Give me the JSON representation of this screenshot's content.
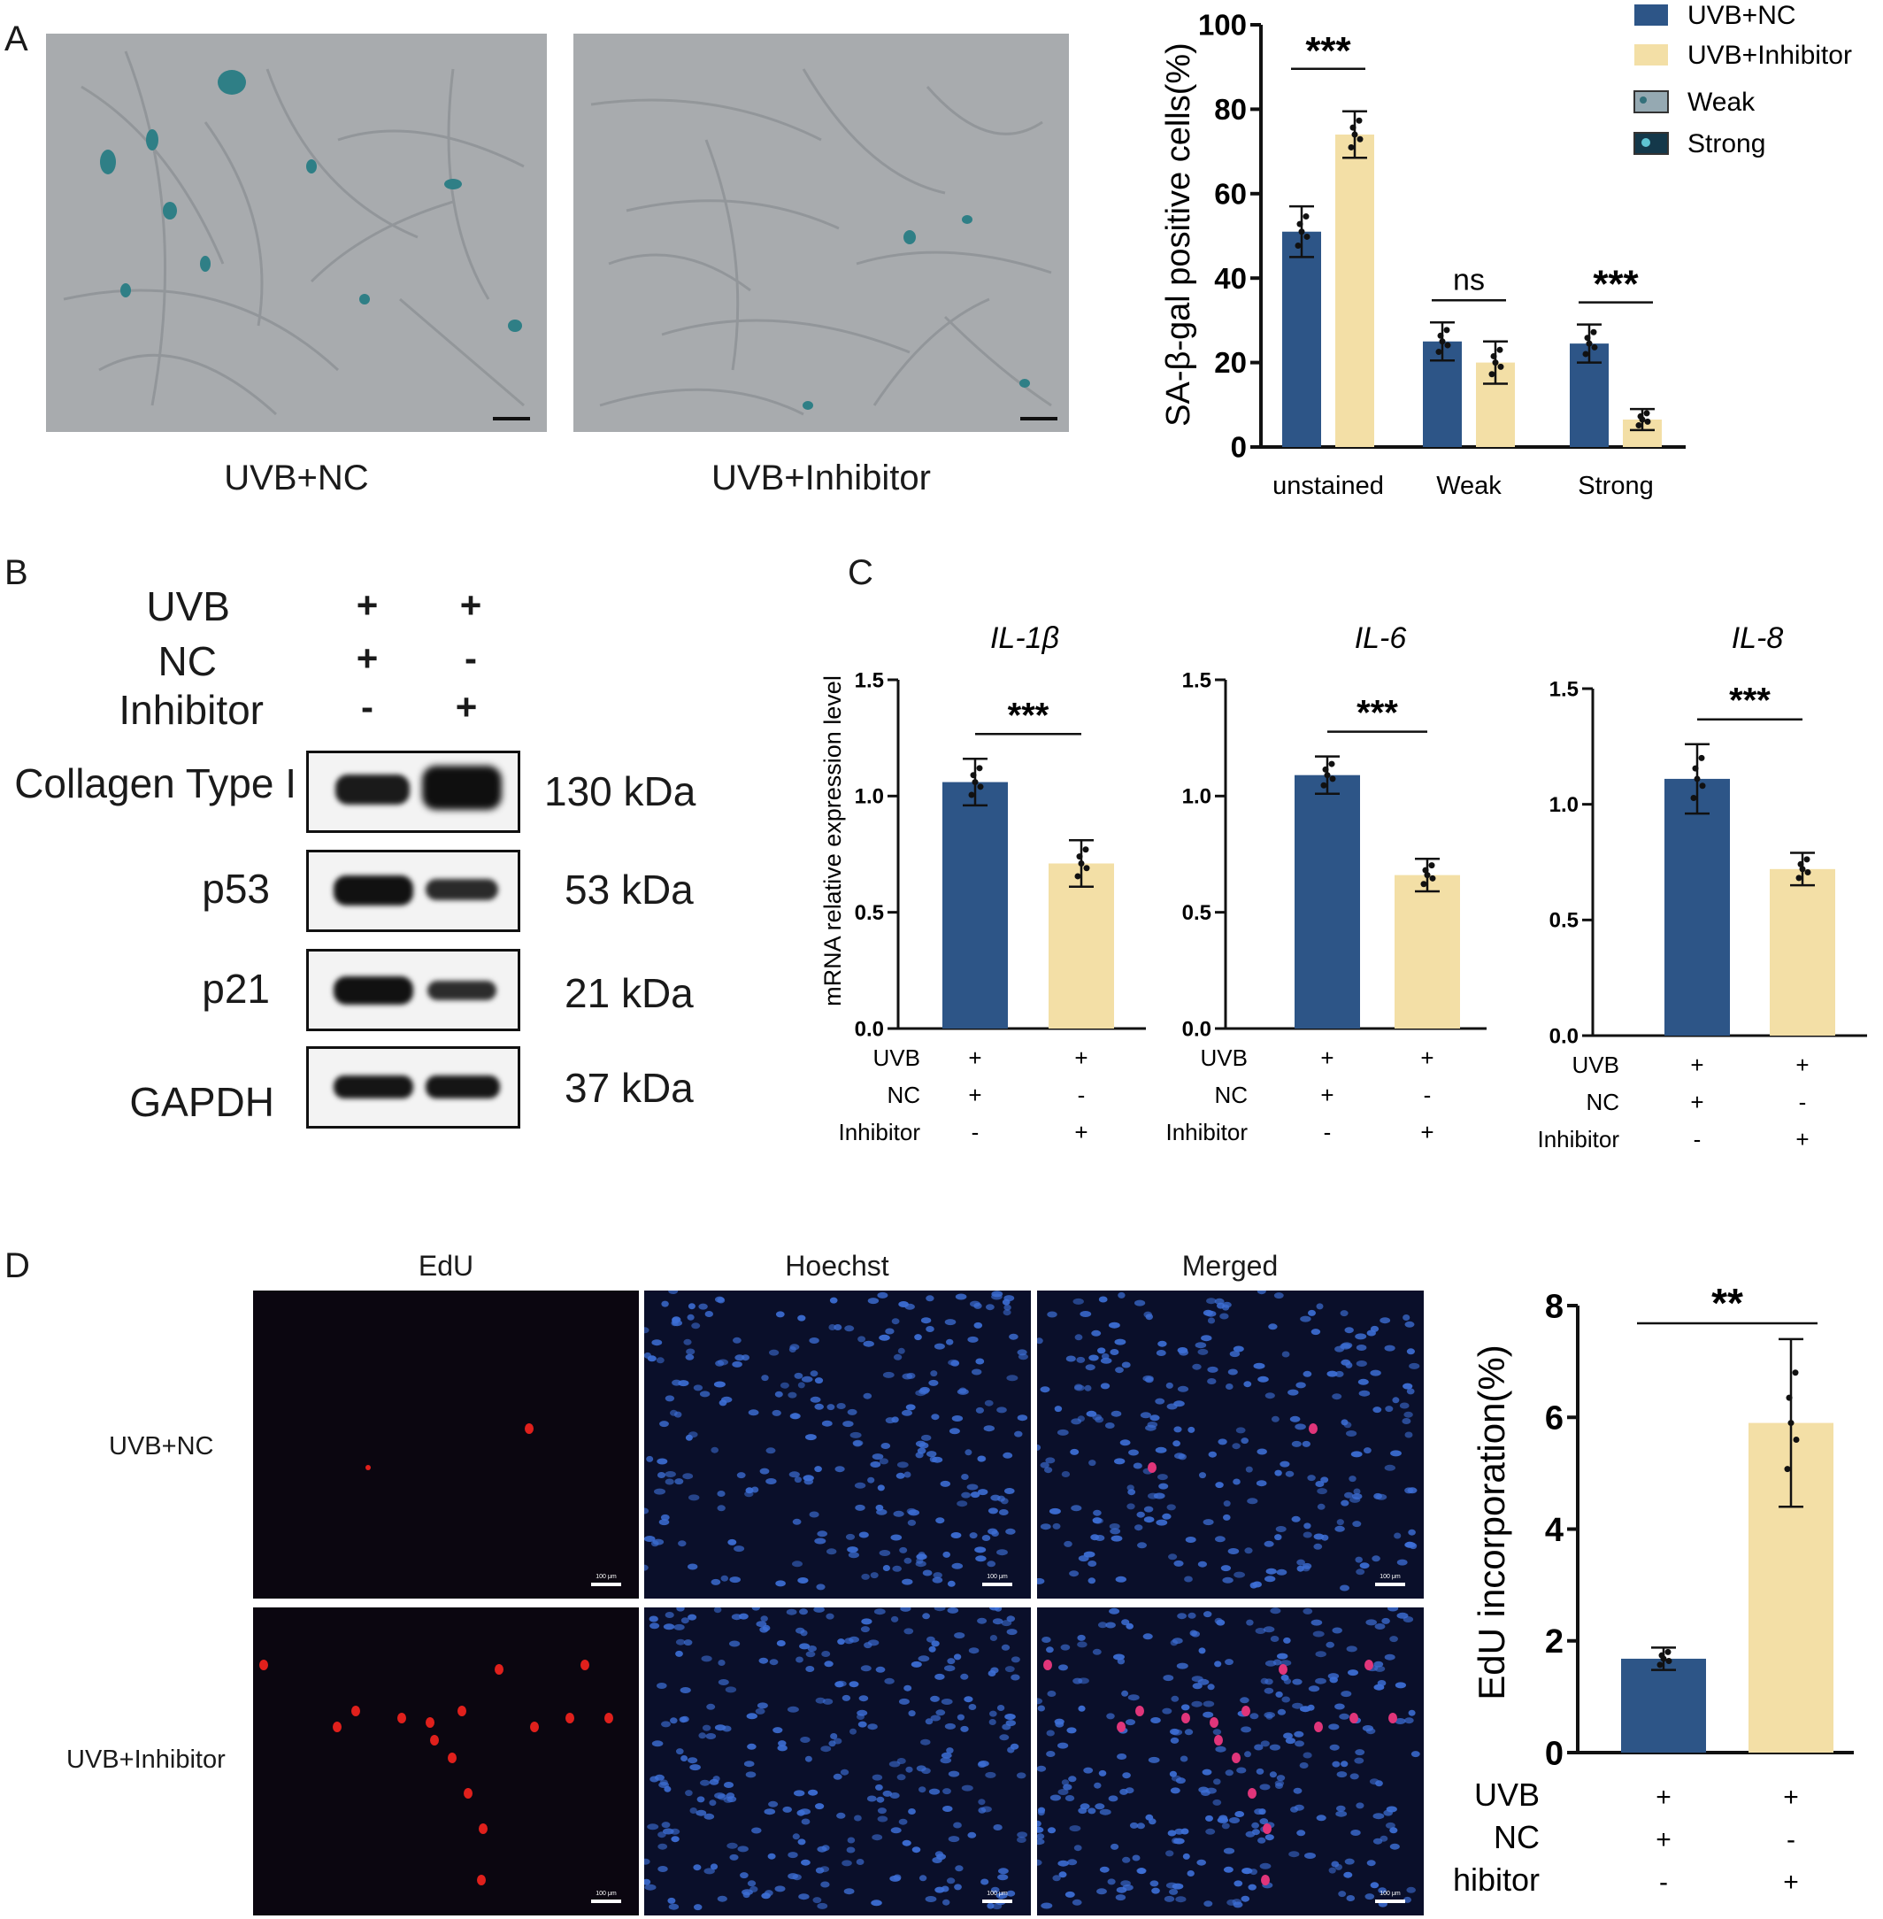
{
  "panels": {
    "A": "A",
    "B": "B",
    "C": "C",
    "D": "D"
  },
  "panelA": {
    "image_captions": [
      "UVB+NC",
      "UVB+Inhibitor"
    ]
  },
  "panelB": {
    "conditions": [
      {
        "label": "UVB",
        "lane1": "+",
        "lane2": "+"
      },
      {
        "label": "NC",
        "lane1": "+",
        "lane2": "-"
      },
      {
        "label": "Inhibitor",
        "lane1": "-",
        "lane2": "+"
      }
    ],
    "bands": [
      {
        "protein": "Collagen Type I",
        "kda": "130  kDa"
      },
      {
        "protein": "p53",
        "kda": "53  kDa"
      },
      {
        "protein": "p21",
        "kda": "21  kDa"
      },
      {
        "protein": "GAPDH",
        "kda": "37  kDa"
      }
    ]
  },
  "panelD": {
    "column_headers": [
      "EdU",
      "Hoechst",
      "Merged"
    ],
    "row_labels": [
      "UVB+NC",
      "UVB+Inhibitor"
    ],
    "scale_label": "100 μm"
  },
  "colors": {
    "nc": "#2d5587",
    "inhibitor": "#f3dfa6"
  },
  "chart_data": [
    {
      "id": "sa-beta-gal",
      "type": "bar",
      "ylabel": "SA-β-gal positive cells(%)",
      "ylim": [
        0,
        100
      ],
      "yticks": [
        "0",
        "20",
        "40",
        "60",
        "80",
        "100"
      ],
      "categories": [
        "unstained",
        "Weak",
        "Strong"
      ],
      "series": [
        {
          "name": "UVB+NC",
          "values": [
            51,
            25,
            24.5
          ],
          "errors": [
            6,
            4.5,
            4.5
          ]
        },
        {
          "name": "UVB+Inhibitor",
          "values": [
            74,
            20,
            6.5
          ],
          "errors": [
            5.5,
            5,
            2.5
          ]
        }
      ],
      "significance": [
        "***",
        "ns",
        "***"
      ],
      "legend": [
        "UVB+NC",
        "UVB+Inhibitor",
        "Weak",
        "Strong"
      ],
      "legend_position": "top-right"
    },
    {
      "id": "il-1b",
      "type": "bar",
      "title": "IL-1β",
      "ylabel": "mRNA relative expression level",
      "ylim": [
        0,
        1.5
      ],
      "yticks": [
        "0.0",
        "0.5",
        "1.0",
        "1.5"
      ],
      "values": [
        1.06,
        0.71
      ],
      "errors": [
        0.1,
        0.1
      ],
      "significance": "***",
      "conditions": [
        {
          "label": "UVB",
          "lane1": "+",
          "lane2": "+"
        },
        {
          "label": "NC",
          "lane1": "+",
          "lane2": "-"
        },
        {
          "label": "Inhibitor",
          "lane1": "-",
          "lane2": "+"
        }
      ]
    },
    {
      "id": "il-6",
      "type": "bar",
      "title": "IL-6",
      "ylim": [
        0,
        1.5
      ],
      "yticks": [
        "0.0",
        "0.5",
        "1.0",
        "1.5"
      ],
      "values": [
        1.09,
        0.66
      ],
      "errors": [
        0.08,
        0.07
      ],
      "significance": "***",
      "conditions": [
        {
          "label": "UVB",
          "lane1": "+",
          "lane2": "+"
        },
        {
          "label": "NC",
          "lane1": "+",
          "lane2": "-"
        },
        {
          "label": "Inhibitor",
          "lane1": "-",
          "lane2": "+"
        }
      ]
    },
    {
      "id": "il-8",
      "type": "bar",
      "title": "IL-8",
      "ylim": [
        0,
        1.5
      ],
      "yticks": [
        "0.0",
        "0.5",
        "1.0",
        "1.5"
      ],
      "values": [
        1.11,
        0.72
      ],
      "errors": [
        0.15,
        0.07
      ],
      "significance": "***",
      "conditions": [
        {
          "label": "UVB",
          "lane1": "+",
          "lane2": "+"
        },
        {
          "label": "NC",
          "lane1": "+",
          "lane2": "-"
        },
        {
          "label": "Inhibitor",
          "lane1": "-",
          "lane2": "+"
        }
      ]
    },
    {
      "id": "edu",
      "type": "bar",
      "ylabel": "EdU incorporation(%)",
      "ylim": [
        0,
        8
      ],
      "yticks": [
        "0",
        "2",
        "4",
        "6",
        "8"
      ],
      "values": [
        1.68,
        5.9
      ],
      "errors": [
        0.2,
        1.5
      ],
      "significance": "**",
      "conditions": [
        {
          "label": "UVB",
          "lane1": "+",
          "lane2": "+"
        },
        {
          "label": "NC",
          "lane1": "+",
          "lane2": "-"
        },
        {
          "label": "Inhibitor",
          "lane1": "-",
          "lane2": "+"
        }
      ]
    }
  ]
}
